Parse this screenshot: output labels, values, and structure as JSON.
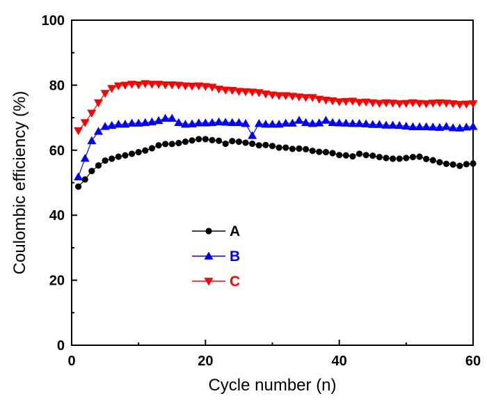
{
  "chart_data": {
    "type": "line",
    "xlabel": "Cycle number (n)",
    "ylabel": "Coulombic efficiency (%)",
    "xlim": [
      0,
      60
    ],
    "ylim": [
      0,
      100
    ],
    "x_ticks": [
      0,
      20,
      40,
      60
    ],
    "y_ticks": [
      0,
      20,
      40,
      60,
      80,
      100
    ],
    "grid": false,
    "legend_position": "left-middle",
    "x": [
      1,
      2,
      3,
      4,
      5,
      6,
      7,
      8,
      9,
      10,
      11,
      12,
      13,
      14,
      15,
      16,
      17,
      18,
      19,
      20,
      21,
      22,
      23,
      24,
      25,
      26,
      27,
      28,
      29,
      30,
      31,
      32,
      33,
      34,
      35,
      36,
      37,
      38,
      39,
      40,
      41,
      42,
      43,
      44,
      45,
      46,
      47,
      48,
      49,
      50,
      51,
      52,
      53,
      54,
      55,
      56,
      57,
      58,
      59,
      60
    ],
    "series": [
      {
        "name": "A",
        "color": "#000000",
        "marker": "circle",
        "values": [
          48.8,
          51.0,
          53.6,
          55.3,
          56.8,
          57.4,
          58.0,
          58.4,
          58.9,
          59.4,
          59.9,
          60.6,
          61.5,
          61.9,
          61.9,
          62.2,
          62.6,
          63.0,
          63.4,
          63.4,
          63.1,
          62.9,
          62.0,
          62.8,
          62.6,
          62.3,
          62.0,
          61.5,
          61.6,
          61.3,
          60.8,
          60.8,
          60.4,
          60.5,
          60.3,
          59.8,
          59.5,
          59.4,
          59.1,
          58.5,
          58.4,
          58.1,
          58.9,
          58.5,
          58.3,
          57.9,
          57.6,
          57.4,
          57.4,
          57.6,
          57.9,
          58.0,
          57.3,
          56.9,
          56.3,
          55.8,
          55.6,
          55.2,
          55.7,
          55.9
        ]
      },
      {
        "name": "B",
        "color": "#0000ff",
        "marker": "triangle-up",
        "values": [
          51.8,
          57.5,
          62.9,
          65.8,
          67.3,
          67.6,
          68.0,
          68.0,
          68.3,
          68.3,
          68.5,
          68.7,
          69.1,
          69.8,
          69.8,
          68.5,
          68.0,
          68.1,
          68.4,
          68.4,
          68.5,
          68.7,
          68.6,
          68.5,
          68.5,
          68.2,
          64.5,
          68.2,
          68.0,
          68.0,
          68.0,
          68.3,
          68.3,
          69.2,
          68.5,
          68.2,
          68.4,
          69.2,
          68.5,
          68.4,
          68.3,
          68.2,
          68.2,
          68.1,
          67.9,
          67.9,
          67.7,
          67.7,
          67.6,
          67.4,
          67.2,
          67.2,
          67.2,
          67.1,
          67.0,
          67.3,
          66.9,
          66.8,
          67.1,
          67.3
        ]
      },
      {
        "name": "C",
        "color": "#ff0000",
        "marker": "triangle-down",
        "values": [
          66.0,
          68.5,
          71.4,
          74.6,
          77.5,
          79.0,
          79.8,
          80.0,
          80.3,
          80.1,
          80.5,
          80.3,
          80.3,
          80.1,
          80.1,
          80.0,
          79.8,
          79.7,
          79.8,
          79.6,
          79.4,
          78.8,
          78.5,
          78.4,
          78.1,
          78.0,
          77.9,
          77.7,
          77.3,
          77.0,
          76.8,
          76.8,
          76.6,
          76.4,
          76.2,
          76.2,
          75.7,
          75.4,
          75.2,
          74.9,
          75.0,
          75.1,
          74.7,
          74.8,
          74.6,
          74.4,
          74.6,
          74.5,
          74.3,
          74.4,
          74.6,
          74.4,
          74.3,
          74.5,
          74.6,
          74.5,
          74.3,
          74.1,
          74.2,
          74.3
        ]
      }
    ]
  }
}
